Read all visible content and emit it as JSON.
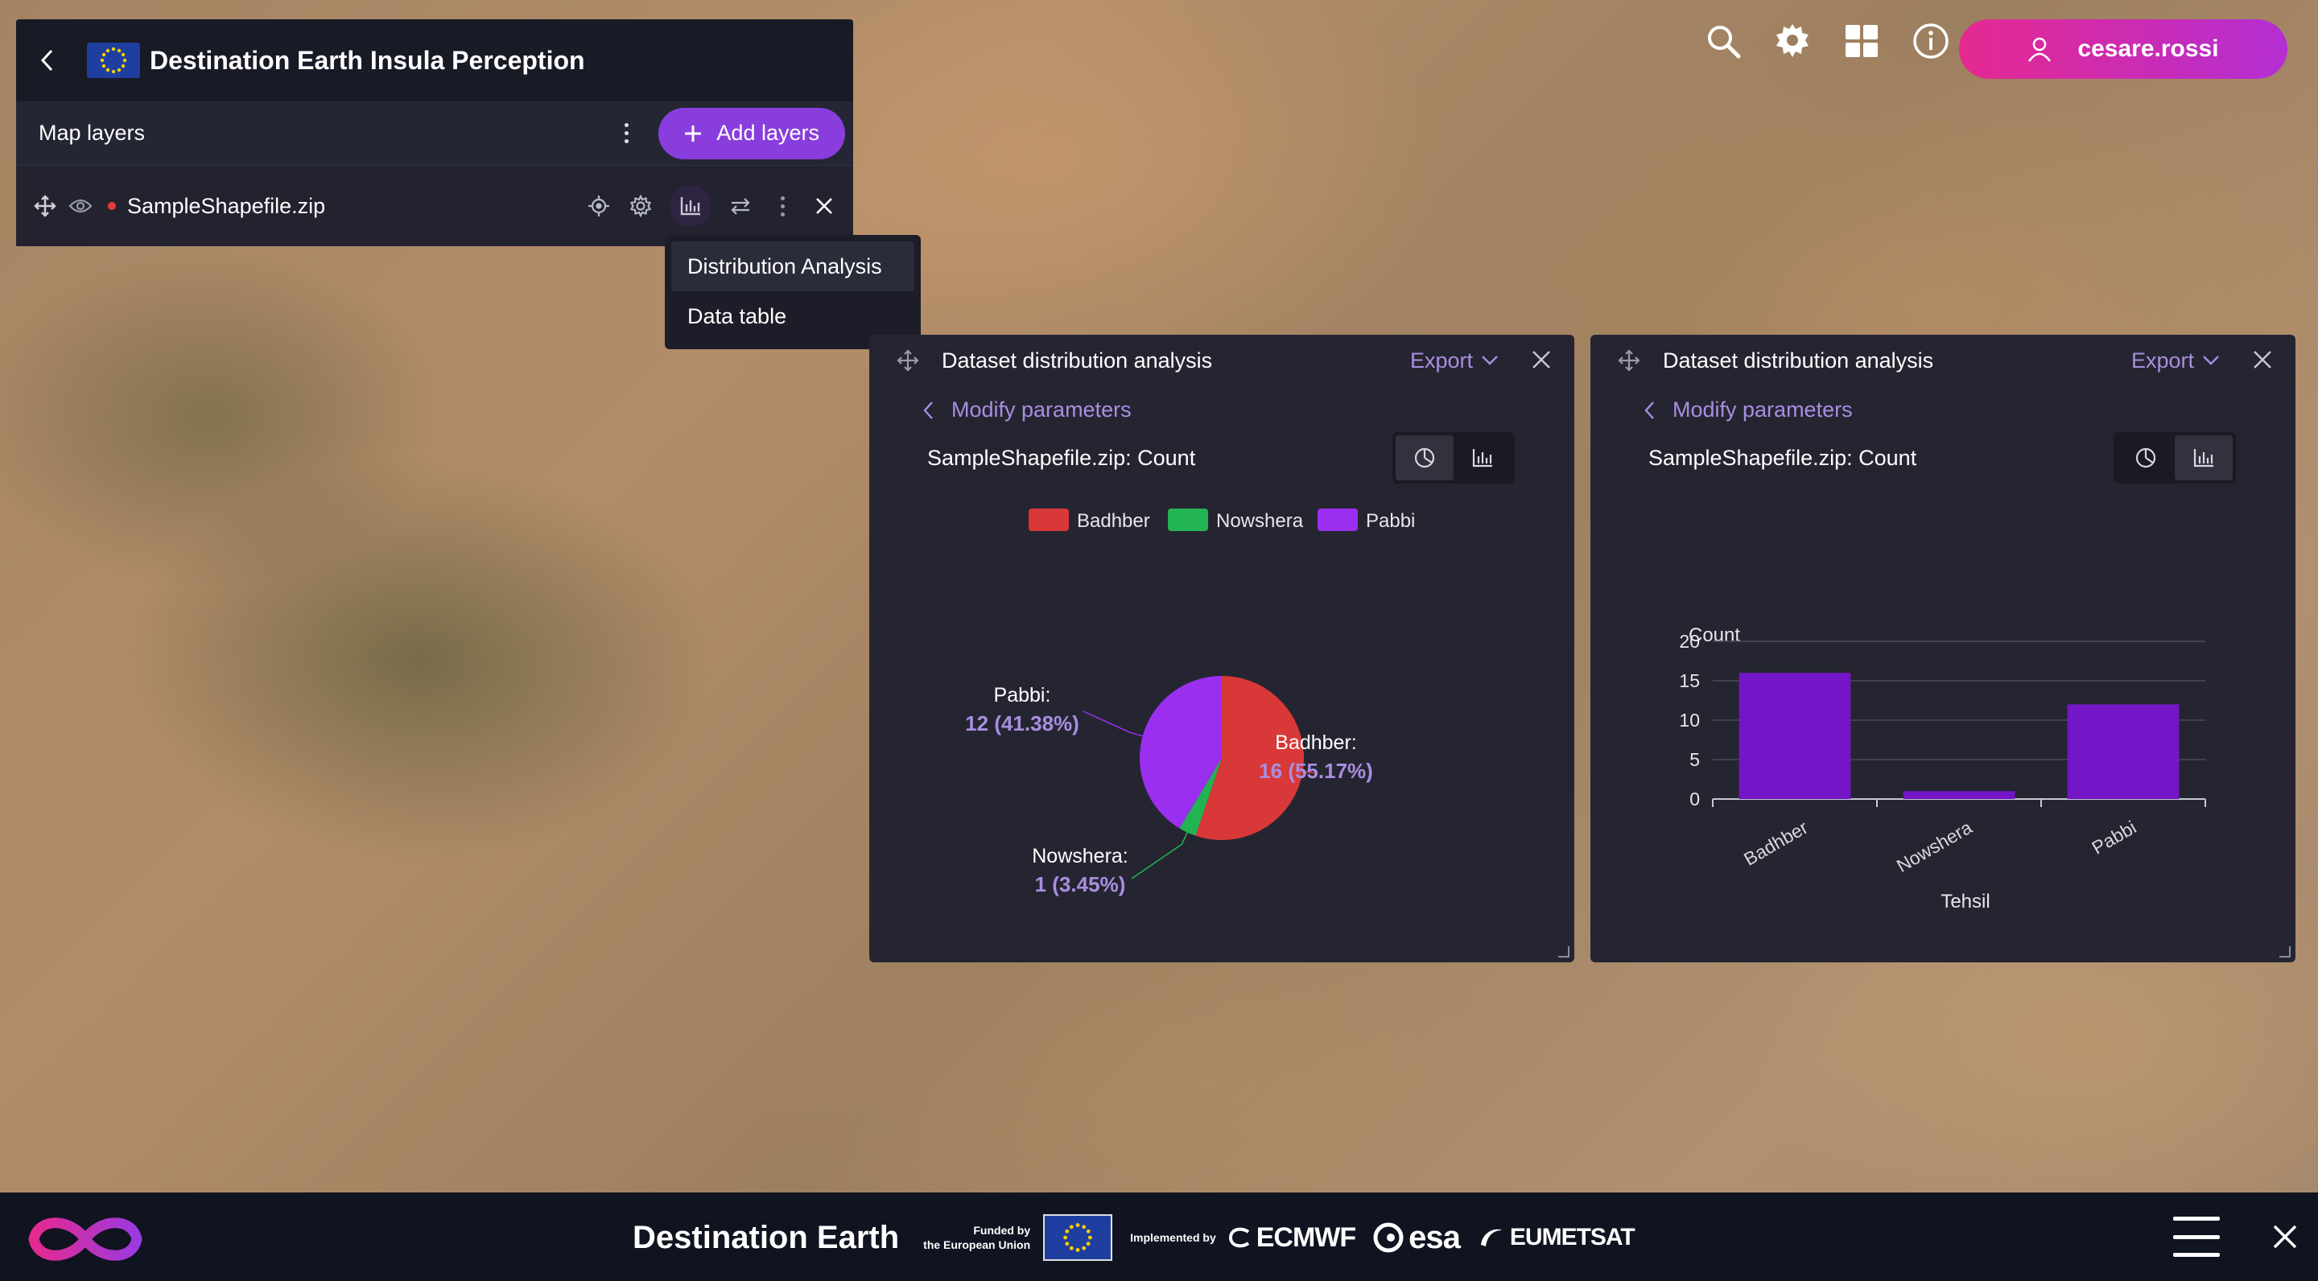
{
  "app": {
    "title": "Destination Earth Insula Perception"
  },
  "layers_panel": {
    "title": "Map layers",
    "add_button": "Add layers",
    "layer": {
      "name": "SampleShapefile.zip",
      "status_color": "#e53b3b"
    }
  },
  "dropdown": {
    "items": [
      "Distribution Analysis",
      "Data table"
    ]
  },
  "user": {
    "name": "cesare.rossi"
  },
  "windows": [
    {
      "title": "Dataset distribution analysis",
      "export_label": "Export",
      "modify_label": "Modify parameters",
      "subtitle": "SampleShapefile.zip: Count",
      "active_view": "pie"
    },
    {
      "title": "Dataset distribution analysis",
      "export_label": "Export",
      "modify_label": "Modify parameters",
      "subtitle": "SampleShapefile.zip: Count",
      "active_view": "bar"
    }
  ],
  "chart_data": [
    {
      "type": "pie",
      "title": "SampleShapefile.zip: Count",
      "legend": [
        "Badhber",
        "Nowshera",
        "Pabbi"
      ],
      "legend_position": "top",
      "slices": [
        {
          "label": "Badhber",
          "value": 16,
          "display": [
            "Badhber:",
            "16 (55.17%)"
          ],
          "color": "#d83838"
        },
        {
          "label": "Nowshera",
          "value": 1,
          "display": [
            "Nowshera:",
            "1 (3.45%)"
          ],
          "color": "#22b452"
        },
        {
          "label": "Pabbi",
          "value": 12,
          "display": [
            "Pabbi:",
            "12 (41.38%)"
          ],
          "color": "#9b2ff0"
        }
      ]
    },
    {
      "type": "bar",
      "title": "SampleShapefile.zip: Count",
      "categories": [
        "Badhber",
        "Nowshera",
        "Pabbi"
      ],
      "values": [
        16,
        1,
        12
      ],
      "xlabel": "Tehsil",
      "ylabel": "Count",
      "ylim": [
        0,
        20
      ],
      "yticks": [
        0,
        5,
        10,
        15,
        20
      ],
      "grid": true,
      "bar_color": "#7416c7"
    }
  ],
  "footer": {
    "brand": "Destination Earth",
    "funded_line1": "Funded by",
    "funded_line2": "the European Union",
    "implemented": "Implemented by",
    "partners": [
      "ECMWF",
      "esa",
      "EUMETSAT"
    ]
  }
}
